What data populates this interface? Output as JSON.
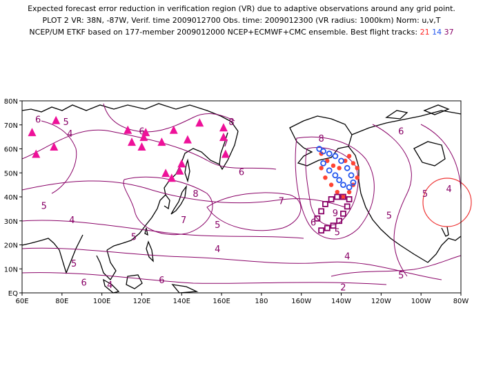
{
  "header": {
    "line1": "Expected forecast error reduction in verification region (VR) due to adaptive observations around any grid point.",
    "line2": "PLOT 2 VR: 38N, -87W, Verif. time 2009012700 Obs. time: 2009012300 (VR radius: 1000km) Norm: u,v,T",
    "line3_prefix": "NCEP/UM ETKF based on 177-member 2009012000 NCEP+ECMWF+CMC ensemble. Best flight tracks:",
    "track_a": "21",
    "track_b": "14",
    "track_c": "37"
  },
  "map": {
    "lon_labels": [
      "60E",
      "80E",
      "100E",
      "120E",
      "140E",
      "160E",
      "180",
      "160W",
      "140W",
      "120W",
      "100W",
      "80W"
    ],
    "lat_labels": [
      "EQ",
      "10N",
      "20N",
      "30N",
      "40N",
      "50N",
      "60N",
      "70N",
      "80N"
    ],
    "contour_labels": [
      {
        "text": "6",
        "lon": 68,
        "lat": 71
      },
      {
        "text": "5",
        "lon": 82,
        "lat": 70
      },
      {
        "text": "4",
        "lon": 84,
        "lat": 65
      },
      {
        "text": "6",
        "lon": 120,
        "lat": 66
      },
      {
        "text": "8",
        "lon": 165,
        "lat": 70
      },
      {
        "text": "7",
        "lon": 162,
        "lat": 61
      },
      {
        "text": "6",
        "lon": 170,
        "lat": 49
      },
      {
        "text": "8",
        "lon": 147,
        "lat": 40
      },
      {
        "text": "7",
        "lon": 141,
        "lat": 29
      },
      {
        "text": "7",
        "lon": 190,
        "lat": 37
      },
      {
        "text": "5",
        "lon": 71,
        "lat": 35
      },
      {
        "text": "4",
        "lon": 85,
        "lat": 29
      },
      {
        "text": "5",
        "lon": 116,
        "lat": 22
      },
      {
        "text": "5",
        "lon": 158,
        "lat": 27
      },
      {
        "text": "4",
        "lon": 158,
        "lat": 17
      },
      {
        "text": "5",
        "lon": 86,
        "lat": 11
      },
      {
        "text": "6",
        "lon": 91,
        "lat": 3
      },
      {
        "text": "4",
        "lon": 104,
        "lat": 2
      },
      {
        "text": "6",
        "lon": 130,
        "lat": 4
      },
      {
        "text": "8",
        "lon": 210,
        "lat": 63
      },
      {
        "text": "9",
        "lon": 217,
        "lat": 32
      },
      {
        "text": "6",
        "lon": 206,
        "lat": 28
      },
      {
        "text": "5",
        "lon": 218,
        "lat": 24
      },
      {
        "text": "4",
        "lon": 223,
        "lat": 14
      },
      {
        "text": "5",
        "lon": 244,
        "lat": 31
      },
      {
        "text": "6",
        "lon": 250,
        "lat": 66
      },
      {
        "text": "5",
        "lon": 262,
        "lat": 40
      },
      {
        "text": "4",
        "lon": 274,
        "lat": 42
      },
      {
        "text": "5",
        "lon": 250,
        "lat": 6
      },
      {
        "text": "2",
        "lon": 221,
        "lat": 1
      }
    ],
    "colors": {
      "contour": "#880066",
      "triangle": "#ee1199",
      "red_track": "#ff4433",
      "blue_track": "#2255ee",
      "purple_track": "#880066",
      "vr_circle": "#ee3333"
    }
  }
}
